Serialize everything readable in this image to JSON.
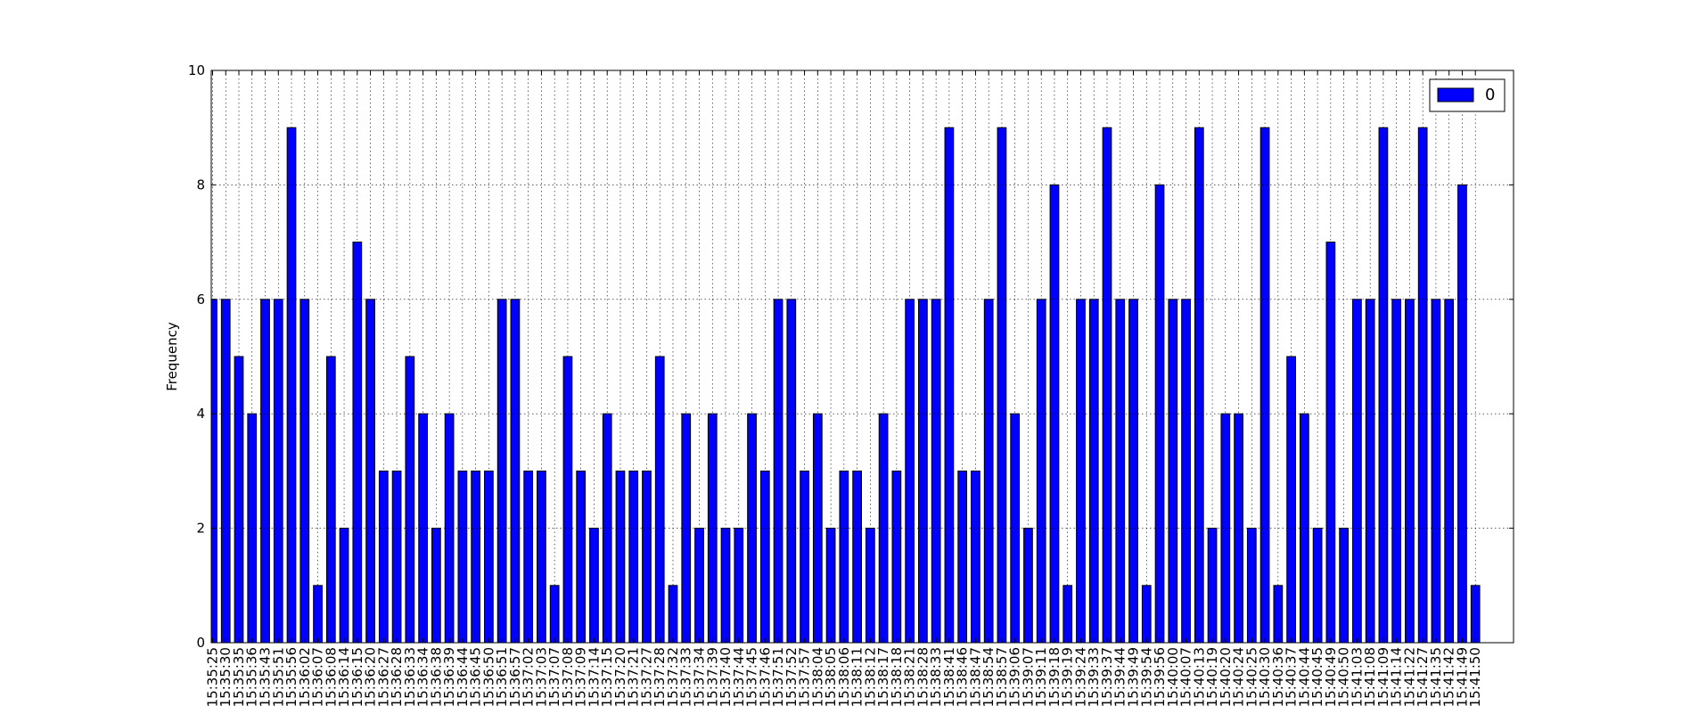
{
  "chart_data": {
    "type": "bar",
    "y_label": "Frequency",
    "categories": [
      "15:35:25",
      "15:35:30",
      "15:35:35",
      "15:35:36",
      "15:35:43",
      "15:35:51",
      "15:35:56",
      "15:36:02",
      "15:36:07",
      "15:36:08",
      "15:36:14",
      "15:36:15",
      "15:36:20",
      "15:36:27",
      "15:36:28",
      "15:36:33",
      "15:36:34",
      "15:36:38",
      "15:36:39",
      "15:36:44",
      "15:36:45",
      "15:36:50",
      "15:36:51",
      "15:36:57",
      "15:37:02",
      "15:37:03",
      "15:37:07",
      "15:37:08",
      "15:37:09",
      "15:37:14",
      "15:37:15",
      "15:37:20",
      "15:37:21",
      "15:37:27",
      "15:37:28",
      "15:37:32",
      "15:37:33",
      "15:37:34",
      "15:37:39",
      "15:37:40",
      "15:37:44",
      "15:37:45",
      "15:37:46",
      "15:37:51",
      "15:37:52",
      "15:37:57",
      "15:38:04",
      "15:38:05",
      "15:38:06",
      "15:38:11",
      "15:38:12",
      "15:38:17",
      "15:38:18",
      "15:38:21",
      "15:38:28",
      "15:38:33",
      "15:38:41",
      "15:38:46",
      "15:38:47",
      "15:38:54",
      "15:38:57",
      "15:39:06",
      "15:39:07",
      "15:39:11",
      "15:39:18",
      "15:39:19",
      "15:39:24",
      "15:39:33",
      "15:39:37",
      "15:39:44",
      "15:39:49",
      "15:39:54",
      "15:39:56",
      "15:40:00",
      "15:40:07",
      "15:40:13",
      "15:40:19",
      "15:40:20",
      "15:40:24",
      "15:40:25",
      "15:40:30",
      "15:40:36",
      "15:40:37",
      "15:40:44",
      "15:40:45",
      "15:40:49",
      "15:40:50",
      "15:41:03",
      "15:41:08",
      "15:41:09",
      "15:41:14",
      "15:41:22",
      "15:41:27",
      "15:41:35",
      "15:41:42",
      "15:41:49",
      "15:41:50"
    ],
    "series": [
      {
        "name": "0",
        "color": "#0000ff",
        "values": [
          6,
          6,
          5,
          4,
          6,
          6,
          9,
          6,
          1,
          5,
          2,
          7,
          6,
          3,
          3,
          5,
          4,
          2,
          4,
          3,
          3,
          3,
          6,
          6,
          3,
          3,
          1,
          5,
          3,
          2,
          4,
          3,
          3,
          3,
          5,
          1,
          4,
          2,
          4,
          2,
          2,
          4,
          3,
          6,
          6,
          3,
          4,
          2,
          3,
          3,
          2,
          4,
          3,
          6,
          6,
          6,
          9,
          3,
          3,
          6,
          9,
          4,
          2,
          6,
          8,
          1,
          6,
          6,
          9,
          6,
          6,
          1,
          8,
          6,
          6,
          9,
          2,
          4,
          4,
          2,
          9,
          1,
          5,
          4,
          2,
          7,
          2,
          6,
          6,
          9,
          6,
          6,
          9,
          6,
          6,
          8,
          1
        ]
      }
    ],
    "ylim": [
      0,
      10
    ],
    "yticks": [
      0,
      2,
      4,
      6,
      8,
      10
    ],
    "grid": true,
    "legend": "upper right"
  }
}
